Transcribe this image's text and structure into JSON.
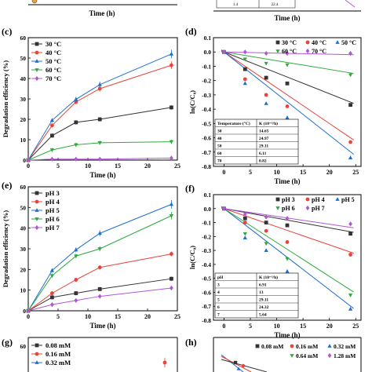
{
  "colors": {
    "black": "#333333",
    "red": "#e8443a",
    "blue": "#1f6fd1",
    "green": "#2eaa3e",
    "purple": "#b057d6"
  },
  "top_strip": {
    "xlabel": "Time (h)",
    "table_values": [
      "1.4",
      "22.4"
    ]
  },
  "chart_data": [
    {
      "id": "c",
      "type": "line",
      "panel_label": "(c)",
      "xlabel": "Time (h)",
      "ylabel": "Degradation efficiency (%)",
      "xlim": [
        0,
        25
      ],
      "ylim": [
        0,
        60
      ],
      "xticks": [
        "0",
        "5",
        "10",
        "15",
        "20",
        "25"
      ],
      "yticks": [
        "0",
        "10",
        "20",
        "30",
        "40",
        "50",
        "60"
      ],
      "legend_position": "top-left",
      "x": [
        0,
        4,
        8,
        12,
        24
      ],
      "series": [
        {
          "name": "30 °C",
          "color": "#333333",
          "marker": "square",
          "values": [
            0,
            12,
            18.5,
            20,
            25.8
          ]
        },
        {
          "name": "40 °C",
          "color": "#e8443a",
          "marker": "circle",
          "values": [
            0,
            17,
            28.5,
            35,
            46.5
          ]
        },
        {
          "name": "50 °C",
          "color": "#1f6fd1",
          "marker": "triangle-up",
          "values": [
            0,
            19.5,
            29.8,
            37,
            52
          ]
        },
        {
          "name": "60 °C",
          "color": "#2eaa3e",
          "marker": "triangle-down",
          "values": [
            0,
            5,
            7.5,
            8.5,
            9
          ]
        },
        {
          "name": "70 °C",
          "color": "#b057d6",
          "marker": "diamond",
          "values": [
            0,
            0.5,
            0.5,
            0.5,
            1
          ]
        }
      ]
    },
    {
      "id": "d",
      "type": "scatter",
      "panel_label": "(d)",
      "xlabel": "Time (h)",
      "ylabel": "ln(C/C₀)",
      "xlim": [
        -2,
        26
      ],
      "ylim": [
        -0.8,
        0.1
      ],
      "xticks": [
        "0",
        "5",
        "10",
        "15",
        "20",
        "25"
      ],
      "yticks": [
        "0.1",
        "0.0",
        "-0.1",
        "-0.2",
        "-0.3",
        "-0.4",
        "-0.5",
        "-0.6",
        "-0.7",
        "-0.8"
      ],
      "legend_position": "top-right",
      "x": [
        0,
        4,
        8,
        12,
        24
      ],
      "series": [
        {
          "name": "30 °C",
          "color": "#333333",
          "marker": "square",
          "values": [
            0,
            -0.12,
            -0.18,
            -0.22,
            -0.37
          ],
          "slope": -0.0146
        },
        {
          "name": "40 °C",
          "color": "#e8443a",
          "marker": "circle",
          "values": [
            0,
            -0.19,
            -0.3,
            -0.38,
            -0.63
          ],
          "slope": -0.025
        },
        {
          "name": "50 °C",
          "color": "#1f6fd1",
          "marker": "triangle-up",
          "values": [
            0,
            -0.22,
            -0.36,
            -0.46,
            -0.74
          ],
          "slope": -0.0291
        },
        {
          "name": "60 °C",
          "color": "#2eaa3e",
          "marker": "triangle-down",
          "values": [
            0,
            -0.05,
            -0.08,
            -0.09,
            -0.16
          ],
          "slope": -0.0061
        },
        {
          "name": "70 °C",
          "color": "#b057d6",
          "marker": "diamond",
          "values": [
            0,
            0,
            -0.01,
            -0.01,
            -0.01
          ],
          "slope": -0.0008
        }
      ],
      "table": {
        "headers": [
          "Temperature (°C)",
          "K (10⁻³/h)"
        ],
        "rows": [
          [
            "30",
            "14.65"
          ],
          [
            "40",
            "24.97"
          ],
          [
            "50",
            "29.11"
          ],
          [
            "60",
            "6.11"
          ],
          [
            "70",
            "0.82"
          ]
        ]
      }
    },
    {
      "id": "e",
      "type": "line",
      "panel_label": "(e)",
      "xlabel": "Time (h)",
      "ylabel": "Degradation efficiency (%)",
      "xlim": [
        0,
        25
      ],
      "ylim": [
        0,
        60
      ],
      "xticks": [
        "0",
        "5",
        "10",
        "15",
        "20",
        "25"
      ],
      "yticks": [
        "0",
        "10",
        "20",
        "30",
        "40",
        "50",
        "60"
      ],
      "legend_position": "top-left",
      "x": [
        0,
        4,
        8,
        12,
        24
      ],
      "series": [
        {
          "name": "pH 3",
          "color": "#333333",
          "marker": "square",
          "values": [
            0,
            6.5,
            8.5,
            10.5,
            15.5
          ]
        },
        {
          "name": "pH 4",
          "color": "#e8443a",
          "marker": "circle",
          "values": [
            0,
            8.5,
            15,
            21,
            27.5
          ]
        },
        {
          "name": "pH 5",
          "color": "#1f6fd1",
          "marker": "triangle-up",
          "values": [
            0,
            19.5,
            29.5,
            37.5,
            51.5
          ]
        },
        {
          "name": "pH 6",
          "color": "#2eaa3e",
          "marker": "triangle-down",
          "values": [
            0,
            17,
            26.5,
            30,
            46
          ]
        },
        {
          "name": "pH 7",
          "color": "#b057d6",
          "marker": "diamond",
          "values": [
            0,
            3,
            5,
            7,
            11
          ]
        }
      ]
    },
    {
      "id": "f",
      "type": "scatter",
      "panel_label": "(f)",
      "xlabel": "Time (h)",
      "ylabel": "ln(C/C₀)",
      "xlim": [
        -2,
        26
      ],
      "ylim": [
        -0.8,
        0.1
      ],
      "xticks": [
        "0",
        "5",
        "10",
        "15",
        "20",
        "25"
      ],
      "yticks": [
        "0.1",
        "0.0",
        "-0.1",
        "-0.2",
        "-0.3",
        "-0.4",
        "-0.5",
        "-0.6",
        "-0.7",
        "-0.8"
      ],
      "legend_position": "top-right",
      "x": [
        0,
        4,
        8,
        12,
        24
      ],
      "series": [
        {
          "name": "pH 3",
          "color": "#333333",
          "marker": "square",
          "values": [
            0,
            -0.07,
            -0.1,
            -0.12,
            -0.18
          ],
          "slope": -0.0069
        },
        {
          "name": "pH 4",
          "color": "#e8443a",
          "marker": "circle",
          "values": [
            0,
            -0.1,
            -0.16,
            -0.24,
            -0.33
          ],
          "slope": -0.013
        },
        {
          "name": "pH 5",
          "color": "#1f6fd1",
          "marker": "triangle-up",
          "values": [
            0,
            -0.21,
            -0.3,
            -0.45,
            -0.72
          ],
          "slope": -0.0291
        },
        {
          "name": "pH 6",
          "color": "#2eaa3e",
          "marker": "triangle-down",
          "values": [
            0,
            -0.18,
            -0.25,
            -0.36,
            -0.62
          ],
          "slope": -0.0243
        },
        {
          "name": "pH 7",
          "color": "#b057d6",
          "marker": "diamond",
          "values": [
            0,
            -0.04,
            -0.06,
            -0.07,
            -0.11
          ],
          "slope": -0.0056
        }
      ],
      "table": {
        "headers": [
          "pH",
          "K (10⁻³/h)"
        ],
        "rows": [
          [
            "3",
            "6.91"
          ],
          [
            "4",
            "13"
          ],
          [
            "5",
            "29.11"
          ],
          [
            "6",
            "24.32"
          ],
          [
            "7",
            "5.64"
          ]
        ]
      }
    }
  ],
  "bottom_strip": {
    "g": {
      "panel_label": "(g)",
      "legend": [
        {
          "name": "0.08 mM",
          "color": "#333333",
          "marker": "square"
        },
        {
          "name": "0.16 mM",
          "color": "#e8443a",
          "marker": "circle"
        },
        {
          "name": "0.32 mM",
          "color": "#1f6fd1",
          "marker": "triangle-up"
        }
      ],
      "ytick": "60"
    },
    "h": {
      "panel_label": "(h)",
      "legend": [
        {
          "name": "0.08 mM",
          "color": "#333333",
          "marker": "square"
        },
        {
          "name": "0.16 mM",
          "color": "#e8443a",
          "marker": "circle"
        },
        {
          "name": "0.32 mM",
          "color": "#1f6fd1",
          "marker": "triangle-up"
        },
        {
          "name": "0.64 mM",
          "color": "#2eaa3e",
          "marker": "triangle-down"
        },
        {
          "name": "1.28 mM",
          "color": "#b057d6",
          "marker": "diamond"
        }
      ]
    }
  }
}
